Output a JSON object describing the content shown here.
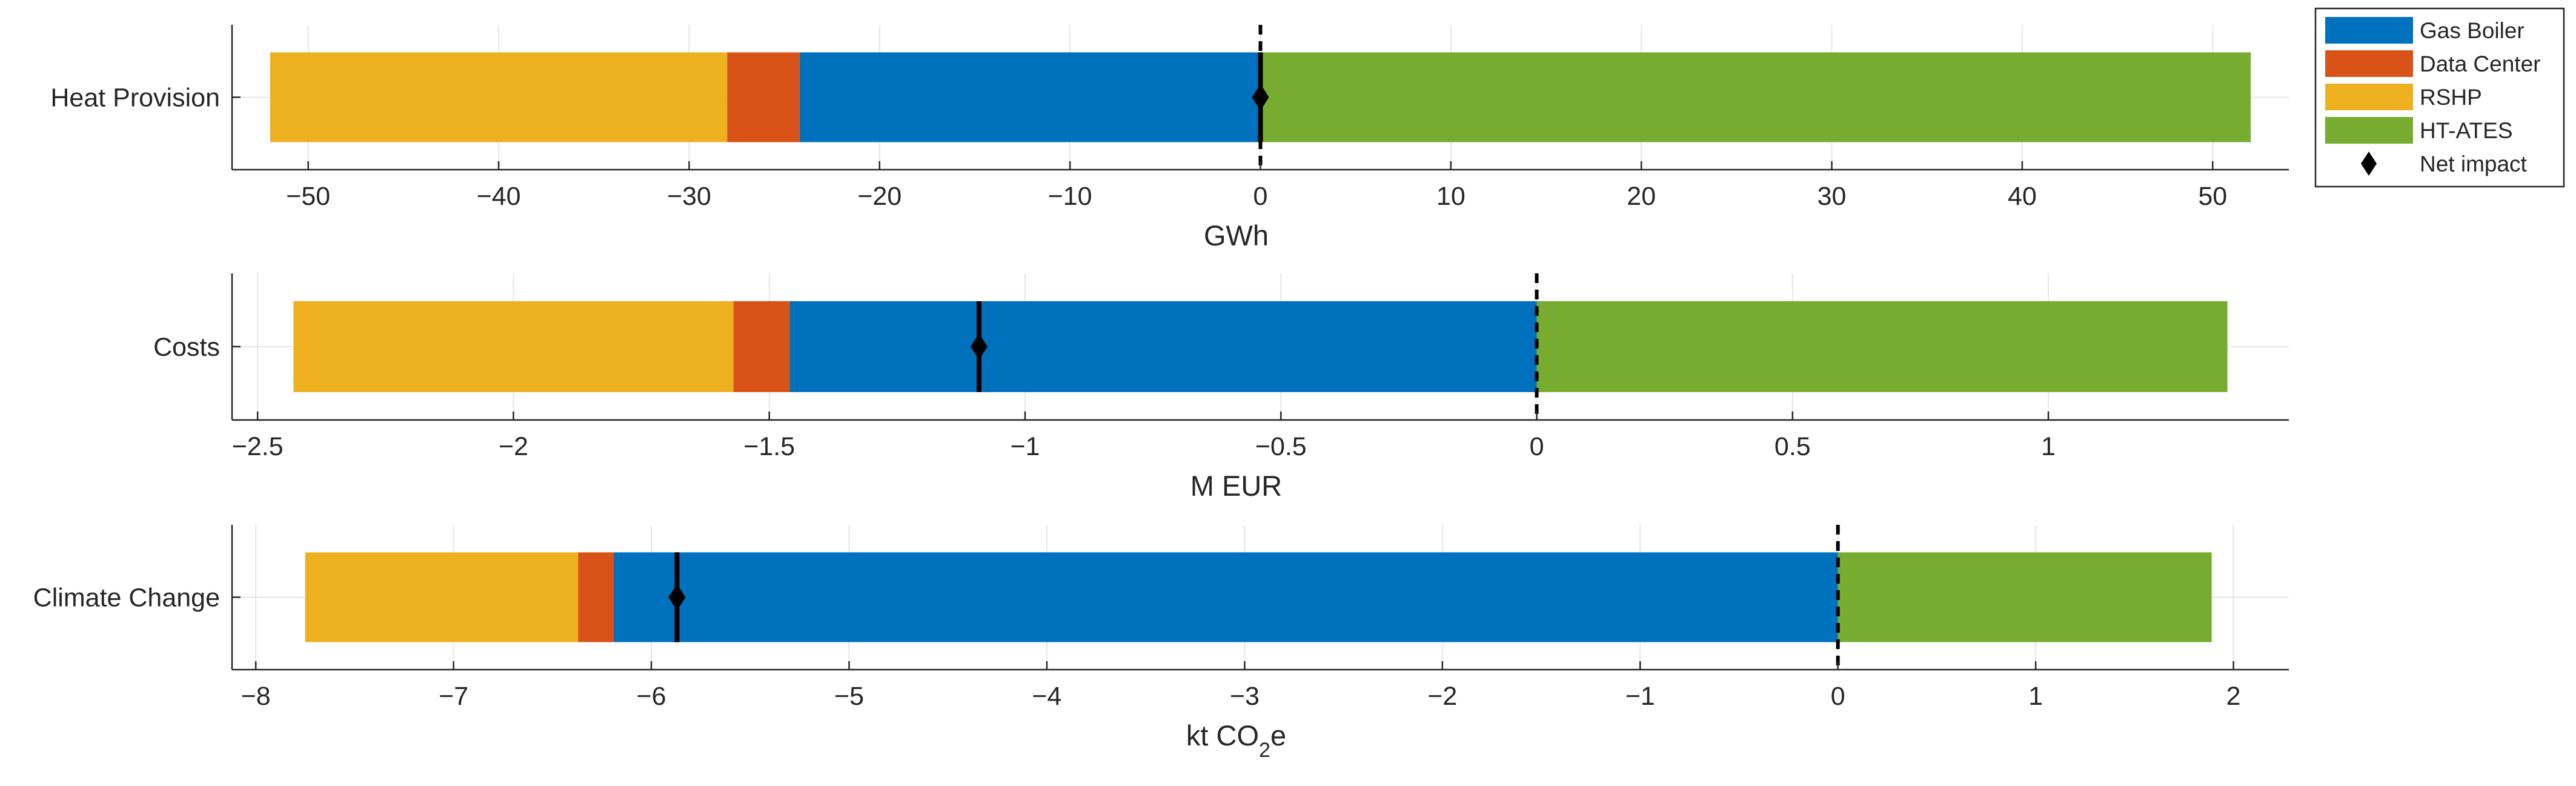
{
  "chart_data": [
    {
      "type": "bar",
      "orientation": "horizontal",
      "stacked": true,
      "category": "Heat Provision",
      "xlabel": "GWh",
      "xlim": [
        -54,
        54
      ],
      "xticks": [
        -50,
        -40,
        -30,
        -20,
        -10,
        0,
        10,
        20,
        30,
        40,
        50
      ],
      "xtick_labels": [
        "−50",
        "−40",
        "−30",
        "−20",
        "−10",
        "0",
        "10",
        "20",
        "30",
        "40",
        "50"
      ],
      "segments": [
        {
          "name": "RSHP",
          "from": -52,
          "to": -28
        },
        {
          "name": "Data Center",
          "from": -28,
          "to": -24.2
        },
        {
          "name": "Gas Boiler",
          "from": -24.2,
          "to": 0
        },
        {
          "name": "HT-ATES",
          "from": 0,
          "to": 52
        }
      ],
      "net_impact": 0,
      "zero_line": 0,
      "grid": true
    },
    {
      "type": "bar",
      "orientation": "horizontal",
      "stacked": true,
      "category": "Costs",
      "xlabel": "M EUR",
      "xlim": [
        -2.55,
        1.47
      ],
      "xticks": [
        -2.5,
        -2,
        -1.5,
        -1,
        -0.5,
        0,
        0.5,
        1
      ],
      "xtick_labels": [
        "−2.5",
        "−2",
        "−1.5",
        "−1",
        "−0.5",
        "0",
        "0.5",
        "1"
      ],
      "segments": [
        {
          "name": "RSHP",
          "from": -2.43,
          "to": -1.57
        },
        {
          "name": "Data Center",
          "from": -1.57,
          "to": -1.46
        },
        {
          "name": "Gas Boiler",
          "from": -1.46,
          "to": 0
        },
        {
          "name": "HT-ATES",
          "from": 0,
          "to": 1.35
        }
      ],
      "net_impact": -1.09,
      "zero_line": 0,
      "grid": true
    },
    {
      "type": "bar",
      "orientation": "horizontal",
      "stacked": true,
      "category": "Climate Change",
      "xlabel": "kt CO",
      "xlabel_subscript": "2",
      "xlabel_suffix": "e",
      "xlim": [
        -8.12,
        2.28
      ],
      "xticks": [
        -8,
        -7,
        -6,
        -5,
        -4,
        -3,
        -2,
        -1,
        0,
        1,
        2
      ],
      "xtick_labels": [
        "−8",
        "−7",
        "−6",
        "−5",
        "−4",
        "−3",
        "−2",
        "−1",
        "0",
        "1",
        "2"
      ],
      "segments": [
        {
          "name": "RSHP",
          "from": -7.75,
          "to": -6.37
        },
        {
          "name": "Data Center",
          "from": -6.37,
          "to": -6.19
        },
        {
          "name": "Gas Boiler",
          "from": -6.19,
          "to": 0
        },
        {
          "name": "HT-ATES",
          "from": 0,
          "to": 1.89
        }
      ],
      "net_impact": -5.87,
      "zero_line": 0,
      "grid": true
    }
  ],
  "legend": {
    "position": "top-right",
    "items": [
      {
        "label": "Gas Boiler",
        "kind": "patch",
        "color": "#0072BD"
      },
      {
        "label": "Data Center",
        "kind": "patch",
        "color": "#D95319"
      },
      {
        "label": "RSHP",
        "kind": "patch",
        "color": "#EDB120"
      },
      {
        "label": "HT-ATES",
        "kind": "patch",
        "color": "#77AC30"
      },
      {
        "label": "Net impact",
        "kind": "marker",
        "color": "#000000"
      }
    ]
  },
  "colors": {
    "Gas Boiler": "#0072BD",
    "Data Center": "#D95319",
    "RSHP": "#EDB120",
    "HT-ATES": "#77AC30",
    "Net impact": "#000000",
    "axis": "#262626",
    "grid": "#e6e6e6"
  }
}
